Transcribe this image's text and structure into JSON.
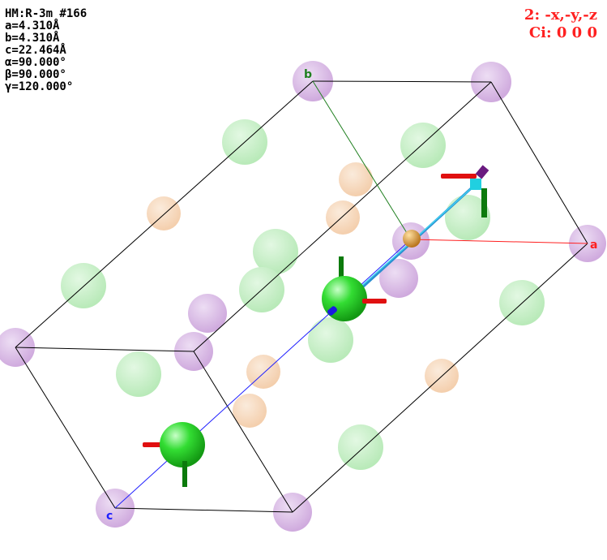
{
  "cell_info": {
    "space_group": "HM:R-3m #166",
    "a": "a=4.310Å",
    "b": "b=4.310Å",
    "c": "c=22.464Å",
    "alpha": "α=90.000°",
    "beta": "β=90.000°",
    "gamma": "γ=120.000°"
  },
  "symmetry": {
    "operation": "2: -x,-y,-z",
    "element": "Ci: 0 0 0"
  },
  "axes": {
    "a_label": "a",
    "b_label": "b",
    "c_label": "c"
  },
  "colors": {
    "a_axis": "#ff2020",
    "b_axis": "#208020",
    "c_axis": "#2020ff",
    "purple_atom": "#c090d0",
    "green_atom": "#a0e0a0",
    "orange_atom": "#f0c090",
    "highlight_atom": "#30d030"
  }
}
